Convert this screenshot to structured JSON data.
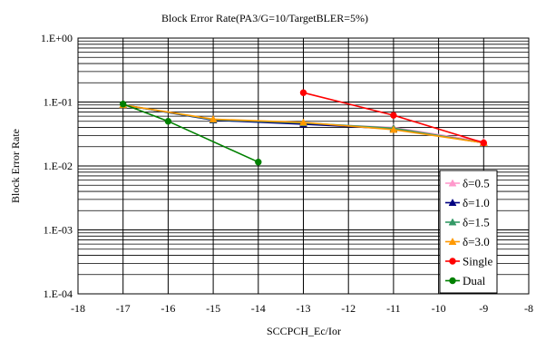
{
  "chart_data": {
    "type": "line",
    "title": "Block Error Rate(PA3/G=10/TargetBLER=5%)",
    "xlabel": "SCCPCH_Ec/Ior",
    "ylabel": "Block Error Rate",
    "xlim": [
      -18,
      -8
    ],
    "ylim": [
      0.0001,
      1
    ],
    "yscale": "log",
    "x_ticks": [
      -18,
      -17,
      -16,
      -15,
      -14,
      -13,
      -12,
      -11,
      -10,
      -9,
      -8
    ],
    "x_tick_labels": [
      "-18",
      "-17",
      "-16",
      "-15",
      "-14",
      "-13",
      "-12",
      "-11",
      "-10",
      "-9",
      "-8"
    ],
    "y_ticks": [
      1,
      0.1,
      0.01,
      0.001,
      0.0001
    ],
    "y_tick_labels": [
      "1.E+00",
      "1.E-01",
      "1.E-02",
      "1.E-03",
      "1.E-04"
    ],
    "grid": true,
    "legend_position": "bottom-right",
    "series": [
      {
        "name": "δ=0.5",
        "color": "#ff99cc",
        "marker": "triangle",
        "x": [
          -17,
          -15,
          -13,
          -11,
          -9
        ],
        "y": [
          0.09,
          0.053,
          0.046,
          0.04,
          0.024
        ]
      },
      {
        "name": "δ=1.0",
        "color": "#000080",
        "marker": "triangle",
        "x": [
          -17,
          -15,
          -13,
          -11,
          -9
        ],
        "y": [
          0.09,
          0.052,
          0.045,
          0.038,
          0.023
        ]
      },
      {
        "name": "δ=1.5",
        "color": "#339966",
        "marker": "triangle",
        "x": [
          -17,
          -15,
          -13,
          -11,
          -9
        ],
        "y": [
          0.09,
          0.053,
          0.047,
          0.039,
          0.023
        ]
      },
      {
        "name": "δ=3.0",
        "color": "#ff9900",
        "marker": "triangle",
        "x": [
          -17,
          -15,
          -13,
          -11,
          -9
        ],
        "y": [
          0.09,
          0.054,
          0.048,
          0.037,
          0.023
        ]
      },
      {
        "name": "Single",
        "color": "#ff0000",
        "marker": "circle",
        "x": [
          -13,
          -11,
          -9
        ],
        "y": [
          0.14,
          0.062,
          0.023
        ]
      },
      {
        "name": "Dual",
        "color": "#008000",
        "marker": "circle",
        "x": [
          -17,
          -16,
          -14
        ],
        "y": [
          0.093,
          0.05,
          0.0115
        ]
      }
    ]
  }
}
